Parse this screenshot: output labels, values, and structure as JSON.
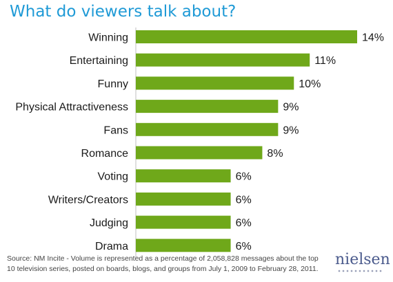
{
  "title": "What do viewers talk about?",
  "chart_data": {
    "type": "bar",
    "orientation": "horizontal",
    "categories": [
      "Winning",
      "Entertaining",
      "Funny",
      "Physical Attractiveness",
      "Fans",
      "Romance",
      "Voting",
      "Writers/Creators",
      "Judging",
      "Drama"
    ],
    "values": [
      14,
      11,
      10,
      9,
      9,
      8,
      6,
      6,
      6,
      6
    ],
    "value_labels": [
      "14%",
      "11%",
      "10%",
      "9%",
      "9%",
      "8%",
      "6%",
      "6%",
      "6%",
      "6%"
    ],
    "bar_color": "#6fa81a",
    "xlim": [
      0,
      14
    ],
    "grid": false,
    "legend": "none"
  },
  "source": "Source: NM Incite - Volume is represented as a percentage of 2,058,828 messages about the top 10 television series, posted on boards, blogs, and groups from July 1, 2009 to February 28, 2011.",
  "logo": "nielsen"
}
